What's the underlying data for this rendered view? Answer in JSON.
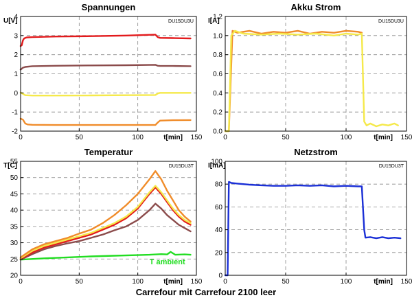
{
  "footer": "Carrefour mit Carrefour 2100 leer",
  "chart_data": [
    {
      "type": "line",
      "title": "Spannungen",
      "tag": "DU15DU3U",
      "xlabel": "t[min]",
      "ylabel": "U[V]",
      "xlim": [
        0,
        150
      ],
      "ylim": [
        -2,
        4
      ],
      "xticks": [
        0,
        50,
        100,
        150
      ],
      "yticks": [
        -2,
        -1,
        0,
        1,
        2,
        3,
        4
      ],
      "grid": true,
      "series": [
        {
          "color": "#e31a1c",
          "x": [
            0,
            1,
            2,
            3,
            5,
            10,
            30,
            60,
            90,
            115,
            117,
            119,
            130,
            145
          ],
          "y": [
            2.45,
            2.5,
            2.75,
            2.85,
            2.9,
            2.92,
            2.95,
            2.97,
            3.0,
            3.05,
            2.92,
            2.88,
            2.87,
            2.85
          ]
        },
        {
          "color": "#8b4b4b",
          "x": [
            0,
            2,
            4,
            10,
            30,
            60,
            90,
            115,
            117,
            119,
            130,
            145
          ],
          "y": [
            1.22,
            1.32,
            1.36,
            1.4,
            1.42,
            1.44,
            1.45,
            1.47,
            1.42,
            1.41,
            1.41,
            1.4
          ]
        },
        {
          "color": "#f5e94a",
          "x": [
            0,
            2,
            4,
            10,
            30,
            60,
            90,
            115,
            117,
            119,
            130,
            145
          ],
          "y": [
            0.02,
            -0.05,
            -0.12,
            -0.14,
            -0.14,
            -0.13,
            -0.12,
            -0.11,
            -0.03,
            0.0,
            0.0,
            0.0
          ]
        },
        {
          "color": "#f08c2a",
          "x": [
            0,
            2,
            4,
            6,
            10,
            30,
            60,
            90,
            115,
            117,
            119,
            130,
            145
          ],
          "y": [
            -1.35,
            -1.4,
            -1.6,
            -1.65,
            -1.67,
            -1.68,
            -1.68,
            -1.68,
            -1.68,
            -1.55,
            -1.45,
            -1.43,
            -1.42
          ]
        }
      ]
    },
    {
      "type": "line",
      "title": "Akku Strom",
      "tag": "DU15DU3U",
      "xlabel": "t[min]",
      "ylabel": "I[A]",
      "xlim": [
        0,
        150
      ],
      "ylim": [
        0,
        1.2
      ],
      "xticks": [
        0,
        50,
        100,
        150
      ],
      "yticks": [
        0,
        0.2,
        0.4,
        0.6,
        0.8,
        1.0,
        1.2
      ],
      "grid": true,
      "series": [
        {
          "color": "#f08c2a",
          "x": [
            0,
            3,
            6,
            10,
            20,
            30,
            40,
            50,
            60,
            70,
            80,
            90,
            100,
            110,
            113
          ],
          "y": [
            0.0,
            0.0,
            1.05,
            1.03,
            1.05,
            1.02,
            1.04,
            1.03,
            1.05,
            1.02,
            1.04,
            1.03,
            1.05,
            1.04,
            1.03
          ]
        },
        {
          "color": "#f5e94a",
          "x": [
            0,
            3,
            5,
            8,
            15,
            30,
            45,
            60,
            75,
            90,
            100,
            110,
            113,
            115,
            117,
            120,
            125,
            130,
            135,
            140,
            143
          ],
          "y": [
            0.0,
            0.0,
            1.0,
            1.05,
            1.02,
            1.01,
            1.02,
            1.01,
            1.02,
            1.0,
            1.02,
            1.01,
            1.02,
            0.1,
            0.06,
            0.08,
            0.05,
            0.07,
            0.06,
            0.08,
            0.06
          ]
        }
      ]
    },
    {
      "type": "line",
      "title": "Temperatur",
      "tag": "DU15DU3T",
      "xlabel": "t[min]",
      "ylabel": "T[C]",
      "xlim": [
        0,
        150
      ],
      "ylim": [
        20,
        55
      ],
      "xticks": [
        0,
        50,
        100,
        150
      ],
      "yticks": [
        20,
        25,
        30,
        35,
        40,
        45,
        50,
        55
      ],
      "grid": true,
      "annotation": {
        "text": "T ambient",
        "x": 110,
        "y": 23.4,
        "color": "#22dd22"
      },
      "series": [
        {
          "color": "#22dd22",
          "x": [
            0,
            20,
            40,
            60,
            80,
            100,
            110,
            120,
            125,
            128,
            132,
            140,
            145
          ],
          "y": [
            24.8,
            25.2,
            25.5,
            25.8,
            26.0,
            26.2,
            26.3,
            26.5,
            26.4,
            27.2,
            26.3,
            26.4,
            26.3
          ]
        },
        {
          "color": "#8b4b4b",
          "x": [
            0,
            10,
            20,
            30,
            40,
            50,
            60,
            70,
            80,
            90,
            100,
            110,
            115,
            120,
            125,
            130,
            135,
            140,
            145
          ],
          "y": [
            24.8,
            26.5,
            28.0,
            29.0,
            29.8,
            30.5,
            31.5,
            32.5,
            33.8,
            35.0,
            37.0,
            40.0,
            42.0,
            40.5,
            38.5,
            37.0,
            35.5,
            34.5,
            33.5
          ]
        },
        {
          "color": "#e31a1c",
          "x": [
            0,
            10,
            20,
            30,
            40,
            50,
            60,
            70,
            80,
            90,
            100,
            110,
            115,
            120,
            125,
            130,
            135,
            140,
            145
          ],
          "y": [
            25.0,
            27.0,
            28.5,
            29.5,
            30.5,
            31.5,
            32.5,
            34.0,
            35.5,
            37.5,
            40.5,
            45.0,
            47.0,
            45.0,
            42.5,
            40.0,
            38.0,
            36.5,
            35.5
          ]
        },
        {
          "color": "#f5e94a",
          "x": [
            0,
            10,
            20,
            30,
            40,
            50,
            60,
            70,
            80,
            90,
            100,
            110,
            115,
            120,
            125,
            130,
            135,
            140,
            145
          ],
          "y": [
            25.2,
            27.5,
            29.0,
            30.0,
            31.0,
            32.0,
            33.0,
            34.5,
            36.0,
            38.0,
            41.0,
            45.5,
            47.5,
            45.5,
            43.0,
            40.5,
            38.5,
            37.0,
            36.0
          ]
        },
        {
          "color": "#f08c2a",
          "x": [
            0,
            10,
            20,
            30,
            40,
            50,
            60,
            70,
            80,
            90,
            100,
            110,
            115,
            120,
            125,
            130,
            135,
            140,
            145
          ],
          "y": [
            25.5,
            28.0,
            29.5,
            30.5,
            31.5,
            32.8,
            34.0,
            36.0,
            38.5,
            41.5,
            45.0,
            49.5,
            52.0,
            49.5,
            46.0,
            43.0,
            40.0,
            38.0,
            36.5
          ]
        }
      ]
    },
    {
      "type": "line",
      "title": "Netzstrom",
      "tag": "DU15DU3T",
      "xlabel": "t[min]",
      "ylabel": "I[mA]",
      "xlim": [
        0,
        150
      ],
      "ylim": [
        0,
        100
      ],
      "xticks": [
        0,
        50,
        100,
        150
      ],
      "yticks": [
        0,
        20,
        40,
        60,
        80,
        100
      ],
      "grid": true,
      "series": [
        {
          "color": "#1a2fd6",
          "x": [
            0,
            2,
            3,
            5,
            10,
            20,
            30,
            40,
            50,
            60,
            70,
            80,
            90,
            100,
            110,
            113,
            115,
            116,
            120,
            125,
            130,
            135,
            140,
            145
          ],
          "y": [
            0.0,
            0.0,
            82.0,
            81.0,
            80.5,
            79.5,
            79.0,
            78.5,
            78.5,
            79.0,
            78.5,
            79.0,
            78.0,
            78.5,
            78.0,
            78.0,
            40.0,
            33.0,
            33.5,
            32.5,
            33.5,
            32.5,
            33.0,
            32.5
          ]
        }
      ]
    }
  ]
}
